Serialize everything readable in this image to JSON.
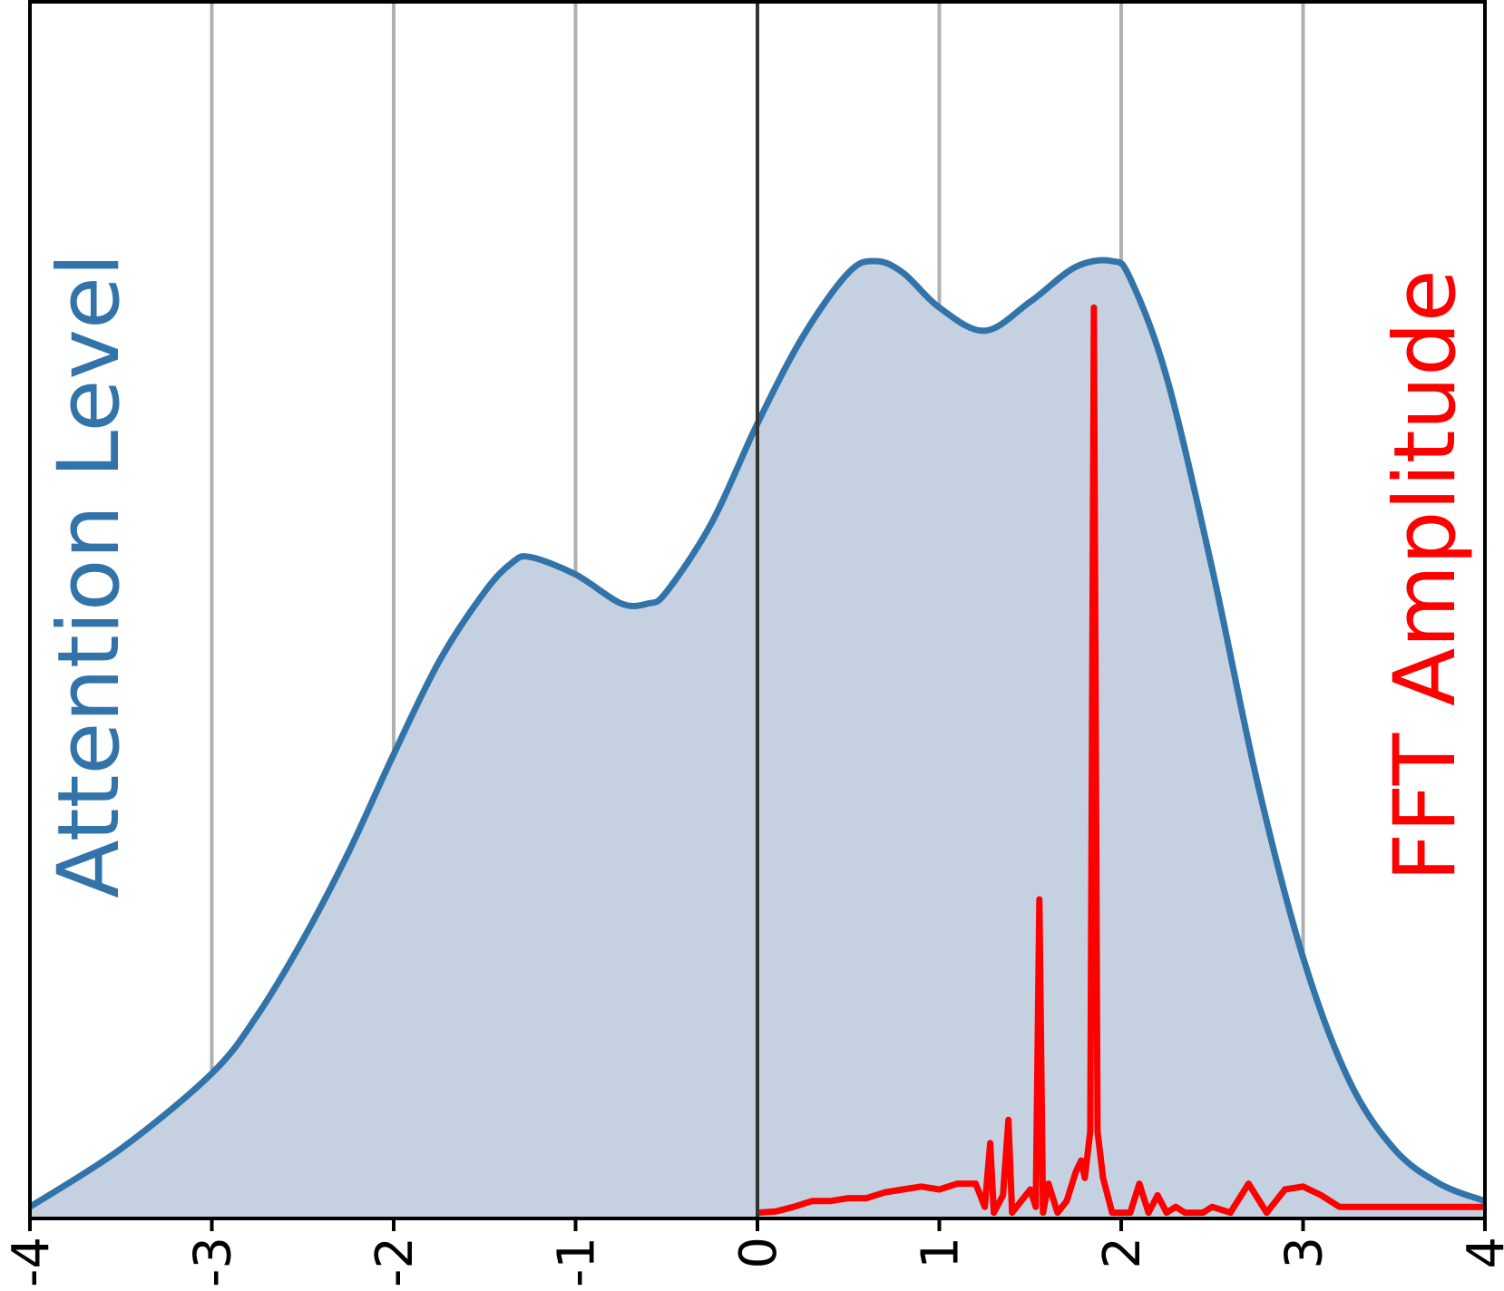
{
  "chart_data": {
    "type": "area",
    "xlim": [
      -4,
      4
    ],
    "x_ticks": [
      "-4",
      "-3",
      "-2",
      "-1",
      "0",
      "1",
      "2",
      "3",
      "4"
    ],
    "grid": "vertical",
    "colors": {
      "attention_line": "#3274a9",
      "attention_fill": "#c5d1e1",
      "fft_line": "#ff0000"
    },
    "left_label": "Attention Level",
    "right_label": "FFT Amplitude",
    "series": [
      {
        "kind": "area",
        "x": [
          -4.0,
          -3.5,
          -3.0,
          -2.75,
          -2.5,
          -2.25,
          -2.0,
          -1.75,
          -1.5,
          -1.35,
          -1.25,
          -1.0,
          -0.75,
          -0.6,
          -0.5,
          -0.25,
          0.0,
          0.25,
          0.5,
          0.65,
          0.8,
          1.0,
          1.25,
          1.5,
          1.75,
          1.95,
          2.05,
          2.25,
          2.5,
          2.75,
          3.0,
          3.25,
          3.5,
          3.75,
          4.0
        ],
        "values": [
          0.02,
          0.12,
          0.25,
          0.35,
          0.48,
          0.63,
          0.8,
          0.96,
          1.08,
          1.13,
          1.14,
          1.11,
          1.06,
          1.06,
          1.08,
          1.2,
          1.37,
          1.52,
          1.63,
          1.65,
          1.63,
          1.57,
          1.53,
          1.58,
          1.64,
          1.65,
          1.62,
          1.45,
          1.12,
          0.75,
          0.45,
          0.24,
          0.12,
          0.06,
          0.03
        ]
      },
      {
        "kind": "line",
        "x": [
          0.0,
          0.1,
          0.2,
          0.3,
          0.4,
          0.5,
          0.6,
          0.7,
          0.8,
          0.9,
          1.0,
          1.1,
          1.2,
          1.25,
          1.28,
          1.3,
          1.35,
          1.38,
          1.4,
          1.45,
          1.5,
          1.53,
          1.55,
          1.57,
          1.6,
          1.65,
          1.7,
          1.75,
          1.78,
          1.8,
          1.83,
          1.85,
          1.87,
          1.9,
          1.95,
          2.0,
          2.05,
          2.1,
          2.15,
          2.2,
          2.25,
          2.3,
          2.35,
          2.4,
          2.45,
          2.5,
          2.6,
          2.7,
          2.8,
          2.9,
          3.0,
          3.1,
          3.2,
          3.3,
          3.5,
          4.0
        ],
        "values": [
          0.01,
          0.012,
          0.02,
          0.03,
          0.03,
          0.035,
          0.035,
          0.045,
          0.05,
          0.055,
          0.05,
          0.06,
          0.06,
          0.02,
          0.13,
          0.01,
          0.04,
          0.17,
          0.01,
          0.03,
          0.05,
          0.02,
          0.55,
          0.01,
          0.06,
          0.01,
          0.03,
          0.08,
          0.1,
          0.07,
          0.15,
          1.57,
          0.15,
          0.07,
          0.01,
          0.01,
          0.01,
          0.06,
          0.01,
          0.04,
          0.01,
          0.02,
          0.01,
          0.01,
          0.01,
          0.02,
          0.01,
          0.06,
          0.01,
          0.05,
          0.055,
          0.04,
          0.02,
          0.02,
          0.02,
          0.02
        ]
      }
    ]
  }
}
